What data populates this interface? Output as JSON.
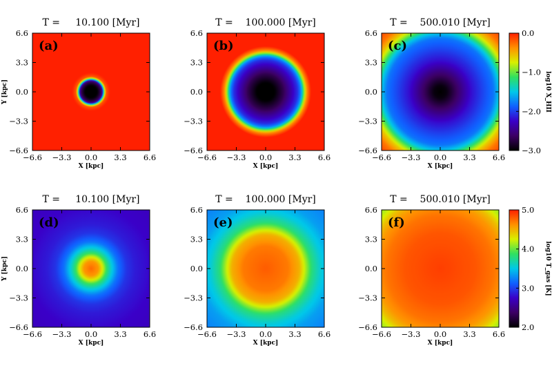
{
  "chart_data": {
    "type": "heatmap",
    "colormap": [
      "#000000",
      "#3c0064",
      "#3a00c8",
      "#1060ff",
      "#00c8e8",
      "#30e060",
      "#d8f000",
      "#ff9000",
      "#ff2000"
    ],
    "xlabel": "X [kpc]",
    "ylabel": "Y [kpc]",
    "xlim": [
      -6.6,
      6.6
    ],
    "ylim": [
      -6.6,
      6.6
    ],
    "xticks": [
      "−6.6",
      "−3.3",
      "0.0",
      "3.3",
      "6.6"
    ],
    "yticks": [
      "6.6",
      "3.3",
      "0.0",
      "−3.3",
      "−6.6"
    ],
    "rows": [
      {
        "colorbar": {
          "label": "log10 X_HII",
          "range": [
            -3.0,
            0.0
          ],
          "ticks": [
            "0.0",
            "−1.0",
            "−2.0",
            "−3.0"
          ]
        },
        "panels": [
          {
            "label": "(a)",
            "title": "T =     10.100 [Myr]",
            "profile": [
              [
                0,
                -3.0
              ],
              [
                0.7,
                -3.0
              ],
              [
                1.2,
                -2.6
              ],
              [
                1.35,
                -1.8
              ],
              [
                1.5,
                -0.9
              ],
              [
                1.7,
                -0.2
              ],
              [
                2.1,
                0.0
              ],
              [
                10,
                0.0
              ]
            ]
          },
          {
            "label": "(b)",
            "title": "T =    100.000 [Myr]",
            "profile": [
              [
                0,
                -3.0
              ],
              [
                1.0,
                -3.0
              ],
              [
                2.0,
                -2.7
              ],
              [
                3.0,
                -2.3
              ],
              [
                3.6,
                -2.05
              ],
              [
                4.0,
                -1.7
              ],
              [
                4.3,
                -1.0
              ],
              [
                4.6,
                -0.4
              ],
              [
                5.1,
                0.0
              ],
              [
                10,
                0.0
              ]
            ]
          },
          {
            "label": "(c)",
            "title": "T =    500.010 [Myr]",
            "profile": [
              [
                0,
                -3.0
              ],
              [
                0.7,
                -2.95
              ],
              [
                2.0,
                -2.6
              ],
              [
                3.5,
                -2.2
              ],
              [
                5.0,
                -1.95
              ],
              [
                6.0,
                -1.8
              ],
              [
                6.6,
                -1.5
              ],
              [
                7.2,
                -1.0
              ],
              [
                7.8,
                -0.6
              ],
              [
                8.5,
                -0.3
              ],
              [
                10,
                0.0
              ]
            ]
          }
        ]
      },
      {
        "colorbar": {
          "label": "log10 T_gas [K]",
          "range": [
            2.0,
            5.0
          ],
          "ticks": [
            "5.0",
            "4.0",
            "3.0",
            "2.0"
          ]
        },
        "panels": [
          {
            "label": "(d)",
            "title": "T =     10.100 [Myr]",
            "profile": [
              [
                0,
                4.75
              ],
              [
                0.8,
                4.6
              ],
              [
                1.3,
                4.25
              ],
              [
                1.7,
                3.9
              ],
              [
                2.2,
                3.6
              ],
              [
                3.0,
                3.2
              ],
              [
                4.0,
                2.95
              ],
              [
                5.0,
                2.85
              ],
              [
                7.0,
                2.75
              ],
              [
                10,
                2.7
              ]
            ]
          },
          {
            "label": "(e)",
            "title": "T =    100.000 [Myr]",
            "profile": [
              [
                0,
                4.8
              ],
              [
                2.5,
                4.7
              ],
              [
                3.8,
                4.5
              ],
              [
                4.6,
                4.1
              ],
              [
                5.2,
                3.8
              ],
              [
                6.2,
                3.55
              ],
              [
                7.5,
                3.35
              ],
              [
                10,
                3.2
              ]
            ]
          },
          {
            "label": "(f)",
            "title": "T =    500.010 [Myr]",
            "profile": [
              [
                0,
                4.9
              ],
              [
                4.0,
                4.82
              ],
              [
                6.0,
                4.72
              ],
              [
                7.2,
                4.6
              ],
              [
                8.0,
                4.45
              ],
              [
                8.8,
                4.2
              ],
              [
                10,
                4.0
              ]
            ]
          }
        ]
      }
    ]
  }
}
